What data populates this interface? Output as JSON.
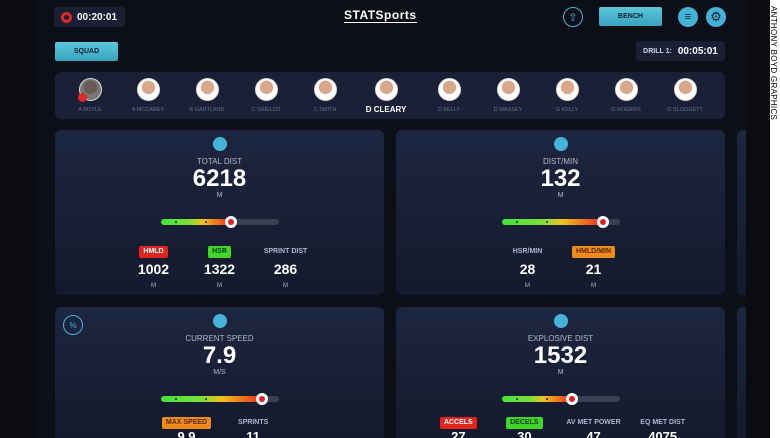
{
  "header": {
    "session_timer": "00:20:01",
    "logo": "STATSports",
    "bench_label": "BENCH",
    "squad_label": "SQUAD",
    "drill_label": "DRILL 1:",
    "drill_timer": "00:05:01"
  },
  "players": [
    {
      "name": "A BOYLE"
    },
    {
      "name": "A MCCAREY"
    },
    {
      "name": "B GARTLAND"
    },
    {
      "name": "C SHIELDS"
    },
    {
      "name": "C SMITH"
    },
    {
      "name": "D CLEARY",
      "selected": true
    },
    {
      "name": "D KELLY"
    },
    {
      "name": "D MASSEY"
    },
    {
      "name": "G KELLY"
    },
    {
      "name": "G ROGERS"
    },
    {
      "name": "G SLOGGETT"
    }
  ],
  "cards": [
    {
      "icon": "location-pin-icon",
      "label": "TOTAL DIST",
      "value": "6218",
      "unit": "M",
      "level": 0.6,
      "subs": [
        {
          "label": "HMLD",
          "color": "#e3231e",
          "value": "1002",
          "unit": "M"
        },
        {
          "label": "HSR",
          "color": "#3fd62b",
          "value": "1322",
          "unit": "M"
        },
        {
          "label": "SPRINT DIST",
          "value": "286",
          "unit": "M"
        }
      ]
    },
    {
      "icon": "stopwatch-icon",
      "label": "DIST/MIN",
      "value": "132",
      "unit": "M",
      "level": 0.86,
      "subs": [
        {
          "label": "HSR/MIN",
          "value": "28",
          "unit": "M"
        },
        {
          "label": "HMLD/MIN",
          "color": "#f08a1a",
          "value": "21",
          "unit": "M"
        }
      ]
    },
    {
      "icon": "speedometer-icon",
      "label": "CURRENT SPEED",
      "value": "7.9",
      "unit": "M/S",
      "level": 0.86,
      "subs": [
        {
          "label": "MAX SPEED",
          "color": "#f08a1a",
          "value": "9.9"
        },
        {
          "label": "SPRINTS",
          "value": "11"
        }
      ]
    },
    {
      "icon": "gauge-icon",
      "label": "EXPLOSIVE DIST",
      "value": "1532",
      "unit": "M",
      "level": 0.6,
      "subs": [
        {
          "label": "ACCELS",
          "color": "#e3231e",
          "value": "27"
        },
        {
          "label": "DECELS",
          "color": "#3fd62b",
          "value": "30"
        },
        {
          "label": "AV MET POWER",
          "value": "47"
        },
        {
          "label": "EQ MET DIST",
          "value": "4075"
        }
      ]
    }
  ],
  "watermark": "ANTHONY BOYD GRAPHICS"
}
